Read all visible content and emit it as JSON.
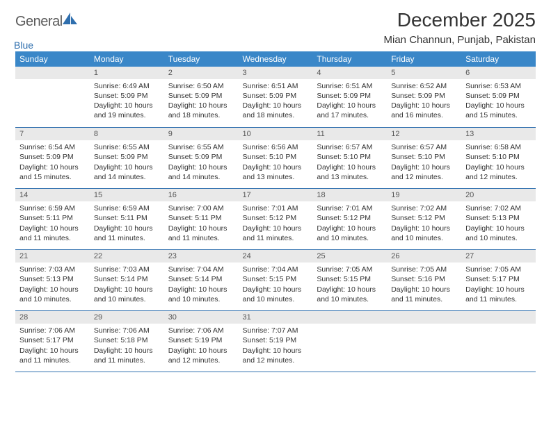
{
  "logo": {
    "text1": "General",
    "text2": "Blue"
  },
  "title": "December 2025",
  "location": "Mian Channun, Punjab, Pakistan",
  "theme": {
    "header_bg": "#3a87c8",
    "header_fg": "#ffffff",
    "rule_color": "#2f6fae",
    "daybar_bg": "#e9e9e9",
    "daybar_fg": "#555555",
    "body_fg": "#333333",
    "page_bg": "#ffffff",
    "logo_gray": "#5a5a5a",
    "logo_blue": "#2f6fae"
  },
  "weekdays": [
    "Sunday",
    "Monday",
    "Tuesday",
    "Wednesday",
    "Thursday",
    "Friday",
    "Saturday"
  ],
  "weeks": [
    [
      {
        "blank": true
      },
      {
        "day": "1",
        "sunrise": "Sunrise: 6:49 AM",
        "sunset": "Sunset: 5:09 PM",
        "daylight": "Daylight: 10 hours and 19 minutes."
      },
      {
        "day": "2",
        "sunrise": "Sunrise: 6:50 AM",
        "sunset": "Sunset: 5:09 PM",
        "daylight": "Daylight: 10 hours and 18 minutes."
      },
      {
        "day": "3",
        "sunrise": "Sunrise: 6:51 AM",
        "sunset": "Sunset: 5:09 PM",
        "daylight": "Daylight: 10 hours and 18 minutes."
      },
      {
        "day": "4",
        "sunrise": "Sunrise: 6:51 AM",
        "sunset": "Sunset: 5:09 PM",
        "daylight": "Daylight: 10 hours and 17 minutes."
      },
      {
        "day": "5",
        "sunrise": "Sunrise: 6:52 AM",
        "sunset": "Sunset: 5:09 PM",
        "daylight": "Daylight: 10 hours and 16 minutes."
      },
      {
        "day": "6",
        "sunrise": "Sunrise: 6:53 AM",
        "sunset": "Sunset: 5:09 PM",
        "daylight": "Daylight: 10 hours and 15 minutes."
      }
    ],
    [
      {
        "day": "7",
        "sunrise": "Sunrise: 6:54 AM",
        "sunset": "Sunset: 5:09 PM",
        "daylight": "Daylight: 10 hours and 15 minutes."
      },
      {
        "day": "8",
        "sunrise": "Sunrise: 6:55 AM",
        "sunset": "Sunset: 5:09 PM",
        "daylight": "Daylight: 10 hours and 14 minutes."
      },
      {
        "day": "9",
        "sunrise": "Sunrise: 6:55 AM",
        "sunset": "Sunset: 5:09 PM",
        "daylight": "Daylight: 10 hours and 14 minutes."
      },
      {
        "day": "10",
        "sunrise": "Sunrise: 6:56 AM",
        "sunset": "Sunset: 5:10 PM",
        "daylight": "Daylight: 10 hours and 13 minutes."
      },
      {
        "day": "11",
        "sunrise": "Sunrise: 6:57 AM",
        "sunset": "Sunset: 5:10 PM",
        "daylight": "Daylight: 10 hours and 13 minutes."
      },
      {
        "day": "12",
        "sunrise": "Sunrise: 6:57 AM",
        "sunset": "Sunset: 5:10 PM",
        "daylight": "Daylight: 10 hours and 12 minutes."
      },
      {
        "day": "13",
        "sunrise": "Sunrise: 6:58 AM",
        "sunset": "Sunset: 5:10 PM",
        "daylight": "Daylight: 10 hours and 12 minutes."
      }
    ],
    [
      {
        "day": "14",
        "sunrise": "Sunrise: 6:59 AM",
        "sunset": "Sunset: 5:11 PM",
        "daylight": "Daylight: 10 hours and 11 minutes."
      },
      {
        "day": "15",
        "sunrise": "Sunrise: 6:59 AM",
        "sunset": "Sunset: 5:11 PM",
        "daylight": "Daylight: 10 hours and 11 minutes."
      },
      {
        "day": "16",
        "sunrise": "Sunrise: 7:00 AM",
        "sunset": "Sunset: 5:11 PM",
        "daylight": "Daylight: 10 hours and 11 minutes."
      },
      {
        "day": "17",
        "sunrise": "Sunrise: 7:01 AM",
        "sunset": "Sunset: 5:12 PM",
        "daylight": "Daylight: 10 hours and 11 minutes."
      },
      {
        "day": "18",
        "sunrise": "Sunrise: 7:01 AM",
        "sunset": "Sunset: 5:12 PM",
        "daylight": "Daylight: 10 hours and 10 minutes."
      },
      {
        "day": "19",
        "sunrise": "Sunrise: 7:02 AM",
        "sunset": "Sunset: 5:12 PM",
        "daylight": "Daylight: 10 hours and 10 minutes."
      },
      {
        "day": "20",
        "sunrise": "Sunrise: 7:02 AM",
        "sunset": "Sunset: 5:13 PM",
        "daylight": "Daylight: 10 hours and 10 minutes."
      }
    ],
    [
      {
        "day": "21",
        "sunrise": "Sunrise: 7:03 AM",
        "sunset": "Sunset: 5:13 PM",
        "daylight": "Daylight: 10 hours and 10 minutes."
      },
      {
        "day": "22",
        "sunrise": "Sunrise: 7:03 AM",
        "sunset": "Sunset: 5:14 PM",
        "daylight": "Daylight: 10 hours and 10 minutes."
      },
      {
        "day": "23",
        "sunrise": "Sunrise: 7:04 AM",
        "sunset": "Sunset: 5:14 PM",
        "daylight": "Daylight: 10 hours and 10 minutes."
      },
      {
        "day": "24",
        "sunrise": "Sunrise: 7:04 AM",
        "sunset": "Sunset: 5:15 PM",
        "daylight": "Daylight: 10 hours and 10 minutes."
      },
      {
        "day": "25",
        "sunrise": "Sunrise: 7:05 AM",
        "sunset": "Sunset: 5:15 PM",
        "daylight": "Daylight: 10 hours and 10 minutes."
      },
      {
        "day": "26",
        "sunrise": "Sunrise: 7:05 AM",
        "sunset": "Sunset: 5:16 PM",
        "daylight": "Daylight: 10 hours and 11 minutes."
      },
      {
        "day": "27",
        "sunrise": "Sunrise: 7:05 AM",
        "sunset": "Sunset: 5:17 PM",
        "daylight": "Daylight: 10 hours and 11 minutes."
      }
    ],
    [
      {
        "day": "28",
        "sunrise": "Sunrise: 7:06 AM",
        "sunset": "Sunset: 5:17 PM",
        "daylight": "Daylight: 10 hours and 11 minutes."
      },
      {
        "day": "29",
        "sunrise": "Sunrise: 7:06 AM",
        "sunset": "Sunset: 5:18 PM",
        "daylight": "Daylight: 10 hours and 11 minutes."
      },
      {
        "day": "30",
        "sunrise": "Sunrise: 7:06 AM",
        "sunset": "Sunset: 5:19 PM",
        "daylight": "Daylight: 10 hours and 12 minutes."
      },
      {
        "day": "31",
        "sunrise": "Sunrise: 7:07 AM",
        "sunset": "Sunset: 5:19 PM",
        "daylight": "Daylight: 10 hours and 12 minutes."
      },
      {
        "blank": true
      },
      {
        "blank": true
      },
      {
        "blank": true
      }
    ]
  ]
}
